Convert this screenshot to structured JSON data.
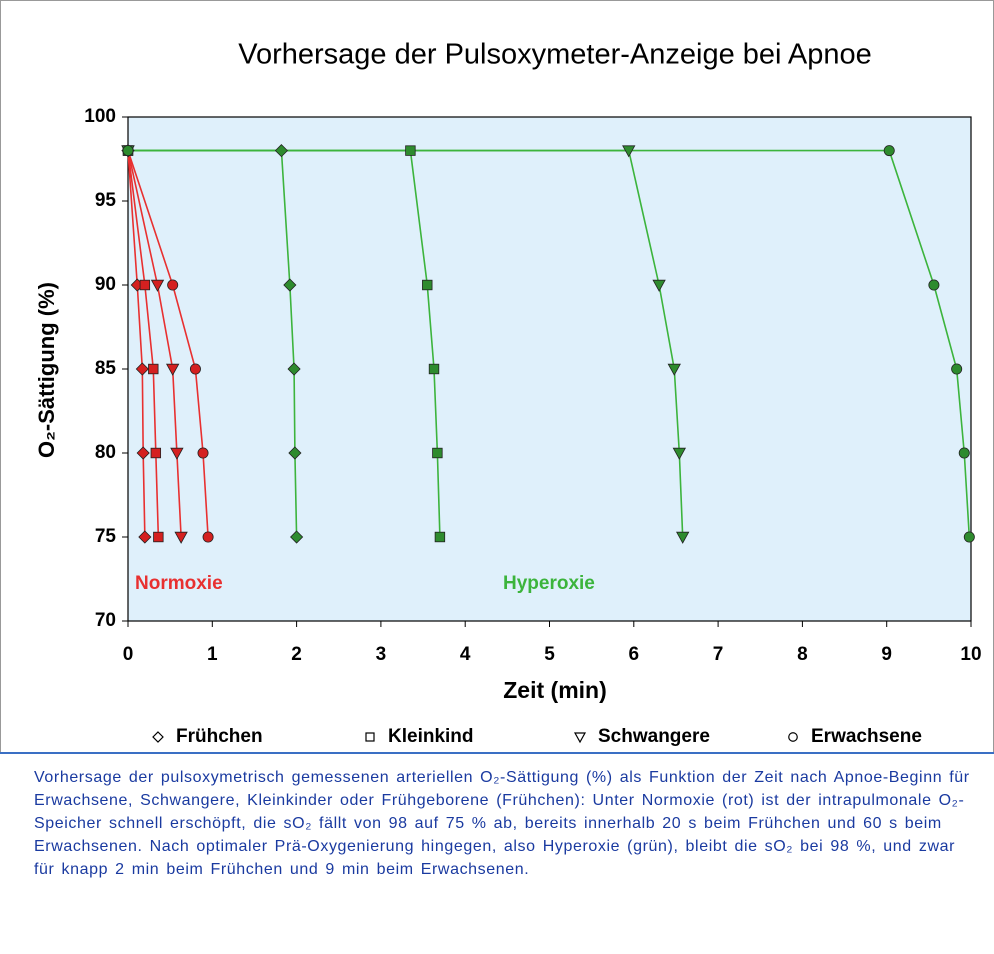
{
  "chart_data": {
    "type": "line",
    "title": "Vorhersage der Pulsoxymeter-Anzeige bei Apnoe",
    "xlabel": "Zeit (min)",
    "ylabel": "O₂-Sättigung (%)",
    "xlim": [
      0,
      10
    ],
    "xticks": [
      0,
      1,
      2,
      3,
      4,
      5,
      6,
      7,
      8,
      9,
      10
    ],
    "ylim": [
      70,
      100
    ],
    "yticks": [
      70,
      75,
      80,
      85,
      90,
      95,
      100
    ],
    "legend": [
      {
        "name": "Frühchen",
        "marker": "diamond"
      },
      {
        "name": "Kleinkind",
        "marker": "square"
      },
      {
        "name": "Schwangere",
        "marker": "triangle-down"
      },
      {
        "name": "Erwachsene",
        "marker": "circle"
      }
    ],
    "conditions": [
      {
        "label": "Normoxie",
        "color": "#e83030",
        "marker_color": "#d42020",
        "series": [
          {
            "x": [
              0,
              0.11,
              0.17,
              0.18,
              0.2
            ],
            "values": [
              98,
              90,
              85,
              80,
              75
            ]
          },
          {
            "x": [
              0,
              0.2,
              0.3,
              0.33,
              0.36
            ],
            "values": [
              98,
              90,
              85,
              80,
              75
            ]
          },
          {
            "x": [
              0,
              0.35,
              0.53,
              0.58,
              0.63
            ],
            "values": [
              98,
              90,
              85,
              80,
              75
            ]
          },
          {
            "x": [
              0,
              0.53,
              0.8,
              0.89,
              0.95
            ],
            "values": [
              98,
              90,
              85,
              80,
              75
            ]
          }
        ]
      },
      {
        "label": "Hyperoxie",
        "color": "#3cb43c",
        "marker_color": "#2e8b2e",
        "series": [
          {
            "x": [
              0,
              1.82,
              1.92,
              1.97,
              1.98,
              2.0
            ],
            "values": [
              98,
              98,
              90,
              85,
              80,
              75
            ]
          },
          {
            "x": [
              0,
              3.35,
              3.55,
              3.63,
              3.67,
              3.7
            ],
            "values": [
              98,
              98,
              90,
              85,
              80,
              75
            ]
          },
          {
            "x": [
              0,
              5.94,
              6.3,
              6.48,
              6.54,
              6.58
            ],
            "values": [
              98,
              98,
              90,
              85,
              80,
              75
            ]
          },
          {
            "x": [
              0,
              9.03,
              9.56,
              9.83,
              9.92,
              9.98
            ],
            "values": [
              98,
              98,
              90,
              85,
              80,
              75
            ]
          }
        ]
      }
    ],
    "caption": "Vorhersage der pulsoxymetrisch gemessenen arteriellen O₂-Sättigung (%) als Funktion der Zeit nach Apnoe-Beginn für Erwachsene, Schwangere, Kleinkinder oder Frühgeborene (Frühchen): Unter Normoxie (rot) ist der intrapulmonale O₂-Speicher schnell erschöpft, die sO₂ fällt von 98 auf 75 % ab, bereits innerhalb 20 s beim Frühchen und 60 s beim Erwachsenen. Nach optimaler Prä-Oxygenierung hingegen, also Hyperoxie (grün), bleibt die sO₂ bei 98 %, und zwar für knapp 2 min beim Frühchen und 9 min beim Erwachsenen."
  }
}
